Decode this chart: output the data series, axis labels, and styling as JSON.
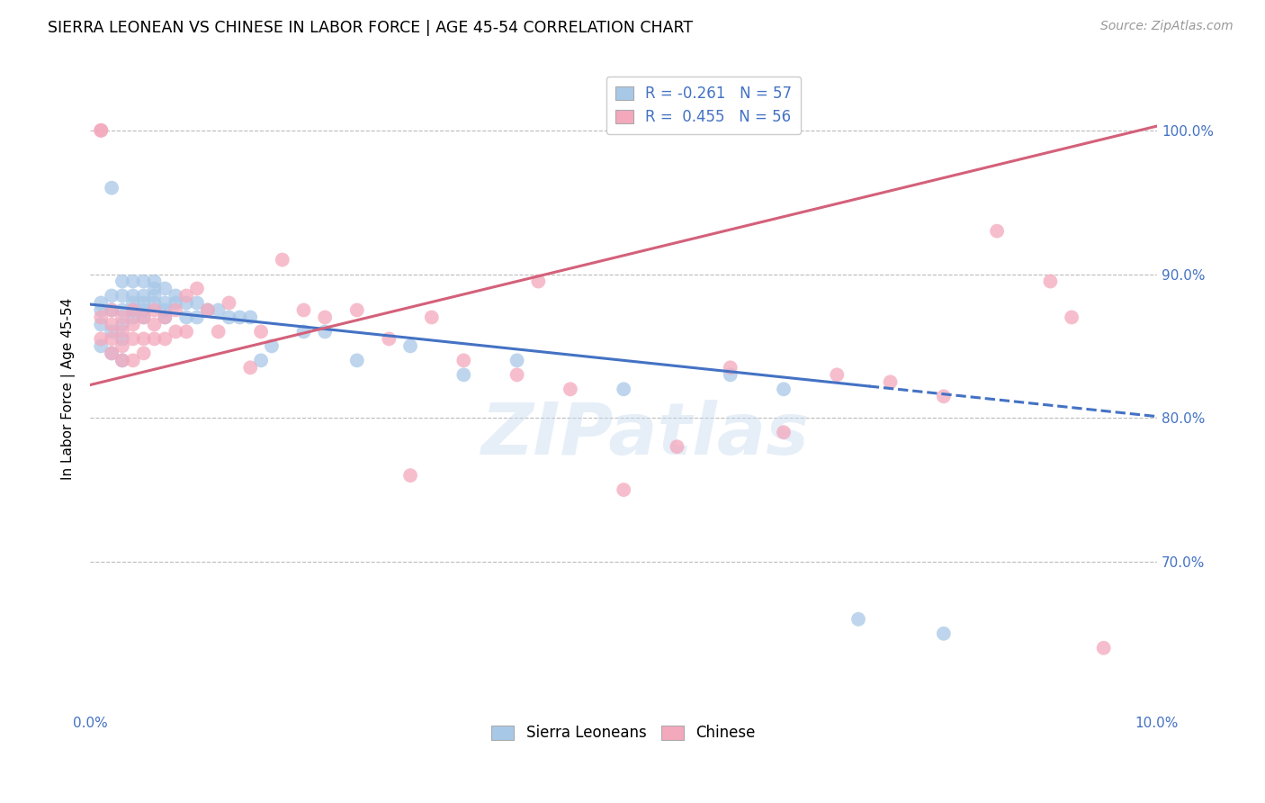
{
  "title": "SIERRA LEONEAN VS CHINESE IN LABOR FORCE | AGE 45-54 CORRELATION CHART",
  "source": "Source: ZipAtlas.com",
  "ylabel": "In Labor Force | Age 45-54",
  "legend_blue": "R = -0.261   N = 57",
  "legend_pink": "R =  0.455   N = 56",
  "legend_label_blue": "Sierra Leoneans",
  "legend_label_pink": "Chinese",
  "blue_color": "#A8C8E8",
  "pink_color": "#F4A8BC",
  "blue_line_color": "#4472C4",
  "pink_line_color": "#D4607A",
  "watermark": "ZIPatlas",
  "xlim": [
    0.0,
    0.1
  ],
  "ylim": [
    0.595,
    1.045
  ],
  "blue_scatter_x": [
    0.001,
    0.001,
    0.001,
    0.001,
    0.002,
    0.002,
    0.002,
    0.002,
    0.002,
    0.003,
    0.003,
    0.003,
    0.003,
    0.003,
    0.003,
    0.004,
    0.004,
    0.004,
    0.004,
    0.004,
    0.005,
    0.005,
    0.005,
    0.005,
    0.005,
    0.006,
    0.006,
    0.006,
    0.006,
    0.007,
    0.007,
    0.007,
    0.007,
    0.008,
    0.008,
    0.009,
    0.009,
    0.01,
    0.01,
    0.011,
    0.012,
    0.013,
    0.014,
    0.015,
    0.016,
    0.017,
    0.02,
    0.022,
    0.025,
    0.03,
    0.035,
    0.04,
    0.05,
    0.06,
    0.065,
    0.072,
    0.08
  ],
  "blue_scatter_y": [
    0.85,
    0.865,
    0.875,
    0.88,
    0.845,
    0.86,
    0.875,
    0.885,
    0.96,
    0.84,
    0.855,
    0.865,
    0.875,
    0.885,
    0.895,
    0.87,
    0.875,
    0.88,
    0.885,
    0.895,
    0.87,
    0.875,
    0.88,
    0.885,
    0.895,
    0.88,
    0.885,
    0.89,
    0.895,
    0.87,
    0.875,
    0.88,
    0.89,
    0.88,
    0.885,
    0.87,
    0.88,
    0.87,
    0.88,
    0.875,
    0.875,
    0.87,
    0.87,
    0.87,
    0.84,
    0.85,
    0.86,
    0.86,
    0.84,
    0.85,
    0.83,
    0.84,
    0.82,
    0.83,
    0.82,
    0.66,
    0.65
  ],
  "pink_scatter_x": [
    0.001,
    0.001,
    0.001,
    0.001,
    0.002,
    0.002,
    0.002,
    0.002,
    0.003,
    0.003,
    0.003,
    0.003,
    0.004,
    0.004,
    0.004,
    0.004,
    0.005,
    0.005,
    0.005,
    0.006,
    0.006,
    0.006,
    0.007,
    0.007,
    0.008,
    0.008,
    0.009,
    0.009,
    0.01,
    0.011,
    0.012,
    0.013,
    0.015,
    0.016,
    0.018,
    0.02,
    0.022,
    0.025,
    0.028,
    0.03,
    0.032,
    0.035,
    0.04,
    0.042,
    0.045,
    0.05,
    0.055,
    0.06,
    0.065,
    0.07,
    0.075,
    0.08,
    0.085,
    0.09,
    0.092,
    0.095
  ],
  "pink_scatter_y": [
    1.0,
    1.0,
    0.87,
    0.855,
    0.875,
    0.865,
    0.855,
    0.845,
    0.87,
    0.86,
    0.85,
    0.84,
    0.875,
    0.865,
    0.855,
    0.84,
    0.87,
    0.855,
    0.845,
    0.875,
    0.865,
    0.855,
    0.87,
    0.855,
    0.875,
    0.86,
    0.885,
    0.86,
    0.89,
    0.875,
    0.86,
    0.88,
    0.835,
    0.86,
    0.91,
    0.875,
    0.87,
    0.875,
    0.855,
    0.76,
    0.87,
    0.84,
    0.83,
    0.895,
    0.82,
    0.75,
    0.78,
    0.835,
    0.79,
    0.83,
    0.825,
    0.815,
    0.93,
    0.895,
    0.87,
    0.64
  ],
  "blue_line_x0": 0.0,
  "blue_line_y0": 0.879,
  "blue_line_x1": 0.1,
  "blue_line_y1": 0.801,
  "pink_line_x0": 0.0,
  "pink_line_y0": 0.823,
  "pink_line_x1": 0.1,
  "pink_line_y1": 1.003
}
